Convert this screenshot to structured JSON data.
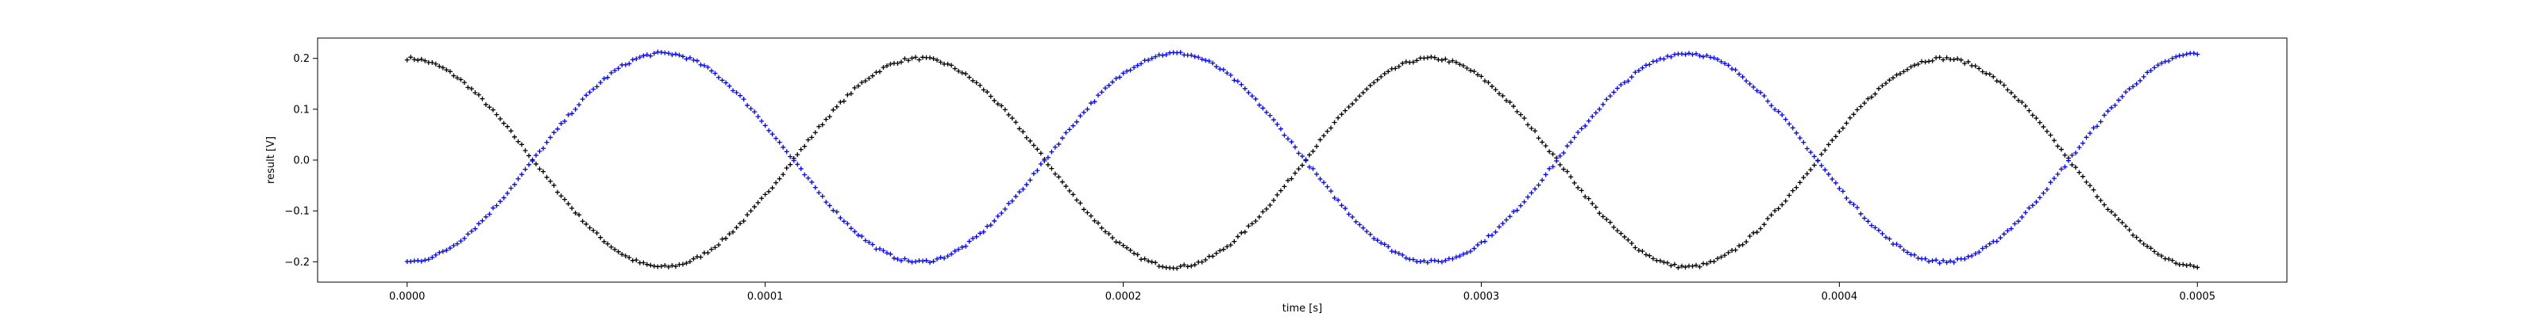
{
  "chart_data": {
    "type": "scatter",
    "title": "",
    "xlabel": "time [s]",
    "ylabel": "result [V]",
    "xlim": [
      -2.5e-05,
      0.000525
    ],
    "ylim": [
      -0.24,
      0.24
    ],
    "xticks": [
      0.0,
      0.0001,
      0.0002,
      0.0003,
      0.0004,
      0.0005
    ],
    "xtick_labels": [
      "0.0000",
      "0.0001",
      "0.0002",
      "0.0003",
      "0.0004",
      "0.0005"
    ],
    "yticks": [
      0.2,
      0.1,
      0.0,
      -0.1,
      -0.2
    ],
    "ytick_labels": [
      "0.2",
      "0.1",
      "0.0",
      "−0.1",
      "−0.2"
    ],
    "grid": false,
    "legend": "none",
    "series": [
      {
        "color": "#000000",
        "marker": "plus",
        "x_start": 0.0,
        "x_end": 0.0005,
        "x_step": 1e-06,
        "amplitude": 0.205,
        "offset": -0.005,
        "period": 0.000143,
        "phase": 0.0
      },
      {
        "color": "#0000ff",
        "marker": "plus",
        "x_start": 0.0,
        "x_end": 0.0005,
        "x_step": 1e-06,
        "amplitude": -0.205,
        "offset": 0.005,
        "period": 0.000143,
        "phase": 0.0
      }
    ]
  }
}
